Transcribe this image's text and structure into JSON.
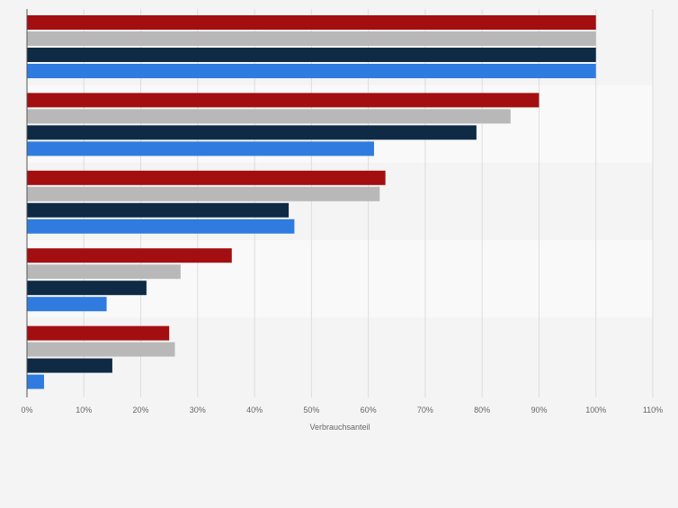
{
  "chart_data": {
    "type": "bar",
    "orientation": "horizontal",
    "categories": [
      "",
      "",
      "",
      "",
      ""
    ],
    "series": [
      {
        "values": [
          100,
          90,
          63,
          36,
          25
        ],
        "color": "#a30f11"
      },
      {
        "values": [
          100,
          85,
          62,
          27,
          26
        ],
        "color": "#b8b8b8"
      },
      {
        "values": [
          100,
          79,
          46,
          21,
          15
        ],
        "color": "#0e2a45"
      },
      {
        "values": [
          100,
          61,
          47,
          14,
          3
        ],
        "color": "#2f7be0"
      }
    ],
    "xlabel": "Verbrauchsanteil",
    "xlim": [
      0,
      110
    ],
    "ticks": [
      "0%",
      "10%",
      "20%",
      "30%",
      "40%",
      "50%",
      "60%",
      "70%",
      "80%",
      "90%",
      "100%",
      "110%"
    ],
    "grid": true,
    "legend": "none"
  }
}
